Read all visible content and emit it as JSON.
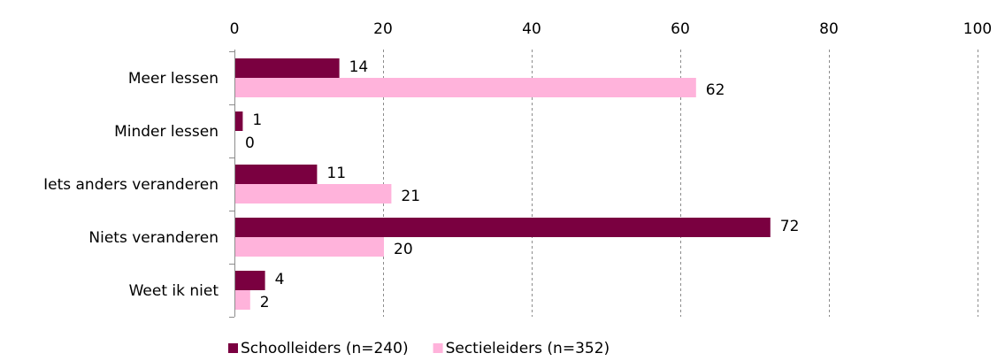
{
  "chart_data": {
    "type": "bar",
    "orientation": "horizontal",
    "categories": [
      "Meer lessen",
      "Minder lessen",
      "Iets anders veranderen",
      "Niets veranderen",
      "Weet ik niet"
    ],
    "series": [
      {
        "name": "Schoolleiders (n=240)",
        "values": [
          14,
          1,
          11,
          72,
          4
        ],
        "color": "#7a0040"
      },
      {
        "name": "Sectieleiders (n=352)",
        "values": [
          62,
          0,
          21,
          20,
          2
        ],
        "color": "#ffb3db"
      }
    ],
    "xlim": [
      0,
      100
    ],
    "xticks": [
      0,
      20,
      40,
      60,
      80,
      100
    ],
    "x_axis_position": "top",
    "grid": "vertical-dashed",
    "legend_position": "bottom",
    "title": "",
    "xlabel": "",
    "ylabel": ""
  }
}
